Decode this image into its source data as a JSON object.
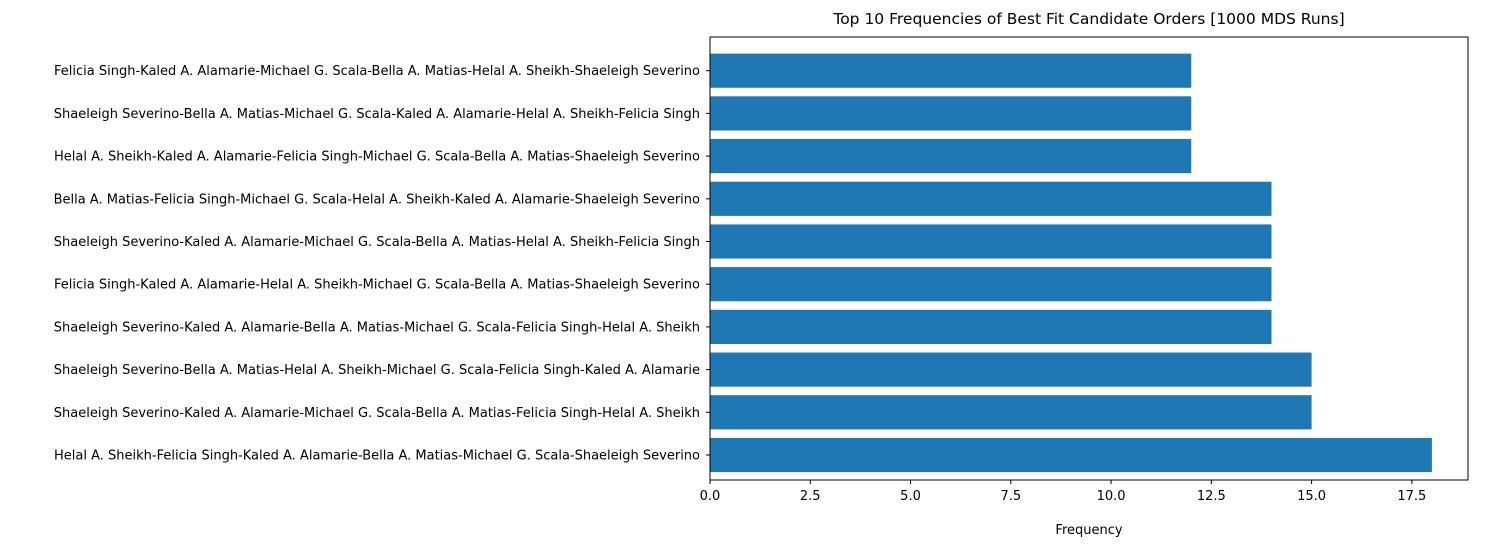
{
  "chart_data": {
    "type": "bar",
    "orientation": "horizontal",
    "title": "Top 10 Frequencies of Best Fit Candidate Orders [1000 MDS Runs]",
    "xlabel": "Frequency",
    "ylabel": "",
    "categories": [
      "Helal A. Sheikh-Felicia Singh-Kaled A. Alamarie-Bella A. Matias-Michael G. Scala-Shaeleigh Severino",
      "Shaeleigh Severino-Kaled A. Alamarie-Michael G. Scala-Bella A. Matias-Felicia Singh-Helal A. Sheikh",
      "Shaeleigh Severino-Bella A. Matias-Helal A. Sheikh-Michael G. Scala-Felicia Singh-Kaled A. Alamarie",
      "Shaeleigh Severino-Kaled A. Alamarie-Bella A. Matias-Michael G. Scala-Felicia Singh-Helal A. Sheikh",
      "Felicia Singh-Kaled A. Alamarie-Helal A. Sheikh-Michael G. Scala-Bella A. Matias-Shaeleigh Severino",
      "Shaeleigh Severino-Kaled A. Alamarie-Michael G. Scala-Bella A. Matias-Helal A. Sheikh-Felicia Singh",
      "Bella A. Matias-Felicia Singh-Michael G. Scala-Helal A. Sheikh-Kaled A. Alamarie-Shaeleigh Severino",
      "Helal A. Sheikh-Kaled A. Alamarie-Felicia Singh-Michael G. Scala-Bella A. Matias-Shaeleigh Severino",
      "Shaeleigh Severino-Bella A. Matias-Michael G. Scala-Kaled A. Alamarie-Helal A. Sheikh-Felicia Singh",
      "Felicia Singh-Kaled A. Alamarie-Michael G. Scala-Bella A. Matias-Helal A. Sheikh-Shaeleigh Severino"
    ],
    "values": [
      18,
      15,
      15,
      14,
      14,
      14,
      14,
      12,
      12,
      12
    ],
    "xlim": [
      0,
      18.9
    ],
    "xticks": [
      0.0,
      2.5,
      5.0,
      7.5,
      10.0,
      12.5,
      15.0,
      17.5
    ],
    "xtick_labels": [
      "0.0",
      "2.5",
      "5.0",
      "7.5",
      "10.0",
      "12.5",
      "15.0",
      "17.5"
    ],
    "grid": false,
    "legend": "none",
    "bar_color": "#1f77b4"
  }
}
